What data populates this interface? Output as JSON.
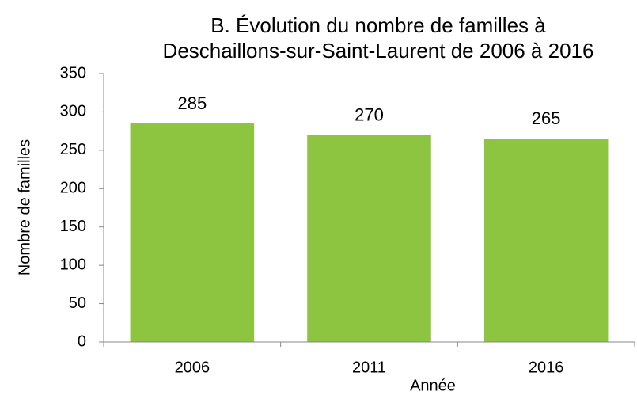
{
  "chart_data": {
    "type": "bar",
    "title": [
      "B. Évolution du nombre de familles à",
      "Deschaillons-sur-Saint-Laurent de 2006 à 2016"
    ],
    "x_label": "Année",
    "y_label": "Nombre de familles",
    "categories": [
      "2006",
      "2011",
      "2016"
    ],
    "values": [
      285,
      270,
      265
    ],
    "color": "#8dc540",
    "ylim": [
      0,
      350
    ],
    "yticks": [
      0,
      50,
      100,
      150,
      200,
      250,
      300,
      350
    ],
    "grid": false
  }
}
